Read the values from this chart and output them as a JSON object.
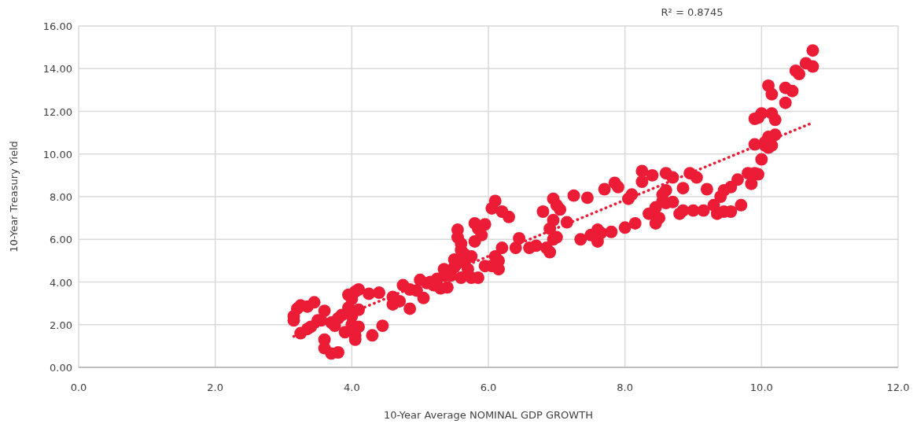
{
  "chart_data": {
    "type": "scatter",
    "xlabel": "10-Year Average NOMINAL GDP GROWTH",
    "ylabel": "10-Year Treasury Yield",
    "annotations": [
      "R² = 0.8745"
    ],
    "xlim": [
      0,
      12
    ],
    "xticks": [
      {
        "value": 0,
        "label": "0.0"
      },
      {
        "value": 2,
        "label": "2.0"
      },
      {
        "value": 4,
        "label": "4.0"
      },
      {
        "value": 6,
        "label": "6.0"
      },
      {
        "value": 8,
        "label": "8.0"
      },
      {
        "value": 10,
        "label": "10.0"
      },
      {
        "value": 12,
        "label": "12.0"
      }
    ],
    "ylim": [
      0,
      16
    ],
    "yticks": [
      {
        "value": 0,
        "label": "0.00"
      },
      {
        "value": 2,
        "label": "2.00"
      },
      {
        "value": 4,
        "label": "4.00"
      },
      {
        "value": 6,
        "label": "6.00"
      },
      {
        "value": 8,
        "label": "8.00"
      },
      {
        "value": 10,
        "label": "10.00"
      },
      {
        "value": 12,
        "label": "12.00"
      },
      {
        "value": 14,
        "label": "14.00"
      },
      {
        "value": 16,
        "label": "16.00"
      }
    ],
    "grid": true,
    "marker": "circle",
    "series": [
      {
        "color": "#ec1c36",
        "x": [
          3.15,
          3.15,
          3.2,
          3.25,
          3.25,
          3.35,
          3.45,
          3.35,
          3.4,
          3.5,
          3.55,
          3.6,
          3.6,
          3.6,
          3.7,
          3.8,
          3.7,
          3.75,
          3.8,
          3.85,
          3.9,
          3.95,
          3.95,
          4.0,
          4.0,
          4.0,
          4.05,
          4.05,
          4.1,
          4.05,
          4.1,
          4.1,
          4.25,
          4.3,
          4.4,
          4.45,
          4.6,
          4.6,
          4.7,
          4.75,
          4.85,
          4.85,
          4.95,
          5.0,
          5.05,
          5.1,
          5.15,
          5.2,
          5.25,
          5.3,
          5.35,
          5.35,
          5.4,
          5.45,
          5.5,
          5.5,
          5.55,
          5.55,
          5.6,
          5.6,
          5.6,
          5.65,
          5.65,
          5.7,
          5.75,
          5.75,
          5.8,
          5.8,
          5.85,
          5.85,
          5.9,
          5.95,
          5.95,
          6.05,
          6.05,
          6.1,
          6.1,
          6.15,
          6.15,
          6.2,
          6.2,
          6.3,
          6.4,
          6.45,
          6.6,
          6.7,
          6.8,
          6.85,
          6.9,
          6.9,
          6.95,
          6.95,
          6.95,
          7.0,
          7.0,
          7.05,
          7.15,
          7.25,
          7.35,
          7.45,
          7.5,
          7.6,
          7.6,
          7.65,
          7.7,
          7.8,
          7.85,
          7.9,
          8.0,
          8.05,
          8.1,
          8.15,
          8.25,
          8.25,
          8.35,
          8.4,
          8.45,
          8.45,
          8.5,
          8.55,
          8.55,
          8.6,
          8.6,
          8.6,
          8.7,
          8.7,
          8.8,
          8.85,
          8.85,
          8.95,
          9.0,
          9.05,
          9.15,
          9.2,
          9.3,
          9.35,
          9.4,
          9.45,
          9.45,
          9.55,
          9.55,
          9.65,
          9.7,
          9.8,
          9.85,
          9.9,
          9.95,
          9.9,
          9.9,
          9.95,
          10.0,
          10.0,
          10.05,
          10.05,
          10.1,
          10.1,
          10.15,
          10.2,
          10.1,
          10.15,
          10.15,
          10.2,
          10.35,
          10.35,
          10.45,
          10.5,
          10.55,
          10.65,
          10.75,
          10.75
        ],
        "values": [
          2.4,
          2.2,
          2.75,
          2.9,
          1.6,
          2.85,
          3.05,
          1.8,
          1.9,
          2.2,
          2.2,
          2.65,
          1.3,
          0.9,
          0.65,
          0.7,
          2.1,
          1.95,
          2.3,
          2.45,
          1.65,
          2.8,
          3.4,
          3.2,
          2.4,
          2.0,
          1.5,
          1.3,
          1.9,
          3.55,
          3.65,
          2.7,
          3.45,
          1.5,
          3.5,
          1.95,
          3.3,
          2.95,
          3.1,
          3.85,
          2.75,
          3.65,
          3.6,
          4.1,
          3.25,
          3.95,
          4.0,
          3.85,
          4.15,
          3.7,
          4.3,
          4.6,
          3.75,
          4.3,
          5.05,
          4.7,
          6.45,
          6.1,
          5.8,
          5.5,
          4.2,
          4.9,
          5.3,
          4.6,
          5.2,
          4.2,
          6.75,
          5.9,
          4.2,
          6.5,
          6.2,
          6.7,
          4.75,
          4.75,
          7.45,
          7.8,
          5.2,
          4.6,
          5.0,
          5.6,
          7.3,
          7.05,
          5.6,
          6.05,
          5.6,
          5.7,
          7.3,
          5.6,
          5.4,
          6.5,
          6.9,
          7.9,
          6.0,
          6.1,
          7.6,
          7.4,
          6.8,
          8.05,
          6.0,
          7.95,
          6.2,
          6.45,
          5.9,
          6.3,
          8.35,
          6.35,
          8.65,
          8.45,
          6.55,
          7.9,
          8.1,
          6.75,
          8.7,
          9.2,
          7.2,
          9.0,
          6.75,
          7.5,
          7.0,
          7.8,
          8.1,
          9.1,
          7.7,
          8.3,
          8.9,
          7.75,
          7.2,
          7.35,
          8.4,
          9.1,
          7.35,
          8.9,
          7.35,
          8.35,
          7.6,
          7.2,
          8.0,
          7.3,
          8.3,
          7.3,
          8.45,
          8.8,
          7.6,
          9.1,
          8.6,
          9.1,
          9.05,
          10.45,
          11.65,
          11.7,
          11.9,
          9.75,
          10.4,
          10.55,
          10.3,
          10.8,
          10.4,
          10.9,
          13.2,
          12.8,
          11.9,
          11.6,
          12.4,
          13.1,
          12.95,
          13.9,
          13.75,
          14.25,
          14.1,
          14.85
        ]
      },
      {
        "type": "line",
        "color": "#ec1c36",
        "line_style": "dotted",
        "marker": "none",
        "x": [
          3.15,
          10.7
        ],
        "values": [
          1.45,
          11.4
        ]
      }
    ]
  }
}
